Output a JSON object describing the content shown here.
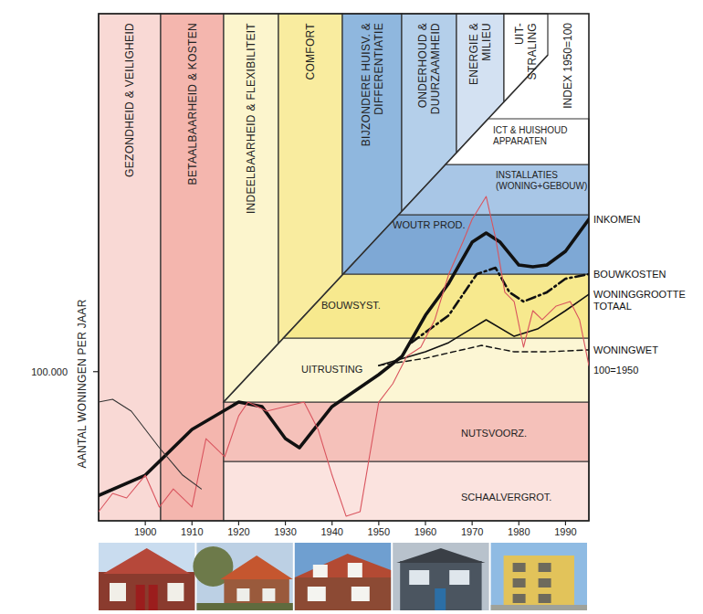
{
  "chart_data": {
    "type": "line",
    "y_label": "AANTAL WONINGEN PER JAAR",
    "xlim": [
      1890,
      1995
    ],
    "xticks": [
      1900,
      1910,
      1920,
      1930,
      1940,
      1950,
      1960,
      1970,
      1980,
      1990
    ],
    "ylim": [
      0,
      340000
    ],
    "yticks": [
      {
        "value": 100000,
        "label": "100.000"
      }
    ],
    "grid": false,
    "column_labels": [
      "GEZONDHEID & VEILIGHEID",
      "BETAALBAARHEID & KOSTEN",
      "INDEELBAARHEID & FLEXIBILITEIT",
      "COMFORT",
      "BIJZONDERE HUISV. & DIFFERENTIATIE",
      "ONDERHOUD & DUURZAAMHEID",
      "ENERGIE & MILIEU",
      "UIT-STRALING"
    ],
    "band_labels": [
      "SCHAALVERGROT.",
      "NUTSVOORZ.",
      "UITRUSTING",
      "BOUWSYST.",
      "WOUTR PROD.",
      "INSTALLATIES (WONING+GEBOUW)",
      "ICT & HUISHOUD APPARATEN"
    ],
    "annotations": [
      "INDEX 1950=100",
      "100=1950"
    ],
    "series": [
      {
        "name": "INKOMEN",
        "color": "#111111",
        "line_style": "solid",
        "x": [
          1890,
          1900,
          1910,
          1920,
          1925,
          1930,
          1933,
          1940,
          1950,
          1955,
          1960,
          1965,
          1970,
          1973,
          1976,
          1980,
          1983,
          1986,
          1990,
          1995
        ],
        "values": [
          17000,
          30600,
          61300,
          79600,
          76600,
          55100,
          49000,
          76600,
          98000,
          110300,
          137800,
          159300,
          186800,
          193000,
          186800,
          171500,
          170300,
          171500,
          180700,
          202200
        ]
      },
      {
        "name": "BOUWKOSTEN",
        "color": "#111111",
        "line_style": "dashdot",
        "x": [
          1957,
          1965,
          1971,
          1975,
          1978,
          1981,
          1986,
          1990,
          1995
        ],
        "values": [
          119500,
          137800,
          165400,
          169700,
          153200,
          147000,
          153200,
          162300,
          165400
        ]
      },
      {
        "name": "WONINGGROOTTE TOTAAL",
        "color": "#111111",
        "line_style": "solid",
        "x": [
          1950,
          1960,
          1965,
          1973,
          1979,
          1984,
          1990,
          1995
        ],
        "values": [
          104100,
          113300,
          119500,
          134800,
          123700,
          128600,
          140900,
          151900
        ]
      },
      {
        "name": "WONINGWET",
        "color": "#111111",
        "line_style": "dashed",
        "x": [
          1950,
          1960,
          1972,
          1979,
          1986,
          1995
        ],
        "values": [
          104100,
          109000,
          117600,
          113300,
          113300,
          114600
        ]
      },
      {
        "color": "#d9545e",
        "line_style": "solid",
        "x": [
          1890,
          1893,
          1896,
          1900,
          1903,
          1906,
          1910,
          1913,
          1917,
          1920,
          1922,
          1926,
          1930,
          1934,
          1937,
          1940,
          1943,
          1946,
          1948,
          1950,
          1953,
          1956,
          1959,
          1962,
          1965,
          1968,
          1970,
          1973,
          1975,
          1977,
          1979,
          1981,
          1983,
          1985,
          1988,
          1991,
          1993,
          1995
        ],
        "values": [
          6100,
          18400,
          15300,
          30600,
          9200,
          21400,
          9200,
          55100,
          42900,
          70400,
          79600,
          73500,
          76600,
          79600,
          61300,
          30600,
          3100,
          6100,
          42900,
          79600,
          91900,
          110300,
          116400,
          134800,
          165400,
          186800,
          202200,
          217500,
          189900,
          153200,
          147000,
          116400,
          140900,
          134800,
          144000,
          147000,
          134800,
          104100
        ]
      },
      {
        "color": "#333333",
        "line_style": "solid",
        "x": [
          1890,
          1893,
          1897,
          1903,
          1908,
          1912
        ],
        "values": [
          79600,
          81500,
          73500,
          49000,
          30600,
          21400
        ]
      }
    ]
  }
}
